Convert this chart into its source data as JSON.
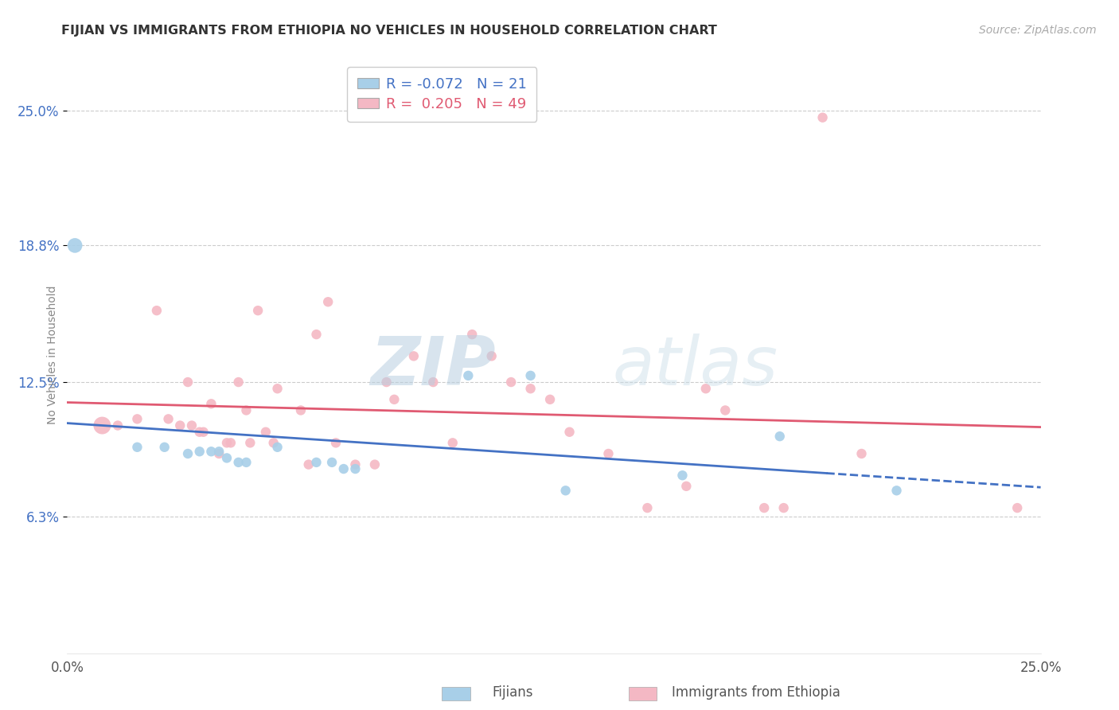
{
  "title": "FIJIAN VS IMMIGRANTS FROM ETHIOPIA NO VEHICLES IN HOUSEHOLD CORRELATION CHART",
  "source": "Source: ZipAtlas.com",
  "ylabel": "No Vehicles in Household",
  "xlim": [
    0.0,
    0.25
  ],
  "ylim": [
    0.0,
    0.275
  ],
  "xtick_positions": [
    0.0,
    0.25
  ],
  "xticklabels": [
    "0.0%",
    "25.0%"
  ],
  "ytick_positions": [
    0.063,
    0.125,
    0.188,
    0.25
  ],
  "ytick_labels": [
    "6.3%",
    "12.5%",
    "18.8%",
    "25.0%"
  ],
  "legend_r_blue": "-0.072",
  "legend_n_blue": "21",
  "legend_r_pink": "0.205",
  "legend_n_pink": "49",
  "legend_label_blue": "Fijians",
  "legend_label_pink": "Immigrants from Ethiopia",
  "blue_color": "#a8cfe8",
  "pink_color": "#f4b8c4",
  "blue_line_color": "#4472c4",
  "pink_line_color": "#e05a72",
  "watermark_color": "#c8d8e8",
  "bg_color": "#ffffff",
  "grid_color": "#cccccc",
  "blue_scatter_x": [
    0.002,
    0.018,
    0.025,
    0.031,
    0.034,
    0.037,
    0.039,
    0.041,
    0.044,
    0.046,
    0.054,
    0.064,
    0.068,
    0.071,
    0.074,
    0.103,
    0.119,
    0.128,
    0.158,
    0.183,
    0.213
  ],
  "blue_scatter_y": [
    0.188,
    0.095,
    0.095,
    0.092,
    0.093,
    0.093,
    0.093,
    0.09,
    0.088,
    0.088,
    0.095,
    0.088,
    0.088,
    0.085,
    0.085,
    0.128,
    0.128,
    0.075,
    0.082,
    0.1,
    0.075
  ],
  "blue_scatter_size": [
    180,
    80,
    80,
    80,
    80,
    80,
    80,
    80,
    80,
    80,
    80,
    80,
    80,
    80,
    80,
    80,
    80,
    80,
    80,
    80,
    80
  ],
  "pink_scatter_x": [
    0.009,
    0.013,
    0.018,
    0.023,
    0.026,
    0.029,
    0.031,
    0.032,
    0.034,
    0.035,
    0.037,
    0.039,
    0.041,
    0.042,
    0.044,
    0.046,
    0.047,
    0.049,
    0.051,
    0.053,
    0.054,
    0.06,
    0.062,
    0.064,
    0.067,
    0.069,
    0.074,
    0.079,
    0.082,
    0.084,
    0.089,
    0.094,
    0.099,
    0.104,
    0.109,
    0.114,
    0.119,
    0.124,
    0.129,
    0.139,
    0.149,
    0.159,
    0.164,
    0.169,
    0.179,
    0.184,
    0.194,
    0.204,
    0.244
  ],
  "pink_scatter_y": [
    0.105,
    0.105,
    0.108,
    0.158,
    0.108,
    0.105,
    0.125,
    0.105,
    0.102,
    0.102,
    0.115,
    0.092,
    0.097,
    0.097,
    0.125,
    0.112,
    0.097,
    0.158,
    0.102,
    0.097,
    0.122,
    0.112,
    0.087,
    0.147,
    0.162,
    0.097,
    0.087,
    0.087,
    0.125,
    0.117,
    0.137,
    0.125,
    0.097,
    0.147,
    0.137,
    0.125,
    0.122,
    0.117,
    0.102,
    0.092,
    0.067,
    0.077,
    0.122,
    0.112,
    0.067,
    0.067,
    0.247,
    0.092,
    0.067
  ],
  "pink_scatter_size": [
    250,
    80,
    80,
    80,
    80,
    80,
    80,
    80,
    80,
    80,
    80,
    80,
    80,
    80,
    80,
    80,
    80,
    80,
    80,
    80,
    80,
    80,
    80,
    80,
    80,
    80,
    80,
    80,
    80,
    80,
    80,
    80,
    80,
    80,
    80,
    80,
    80,
    80,
    80,
    80,
    80,
    80,
    80,
    80,
    80,
    80,
    80,
    80,
    80
  ]
}
